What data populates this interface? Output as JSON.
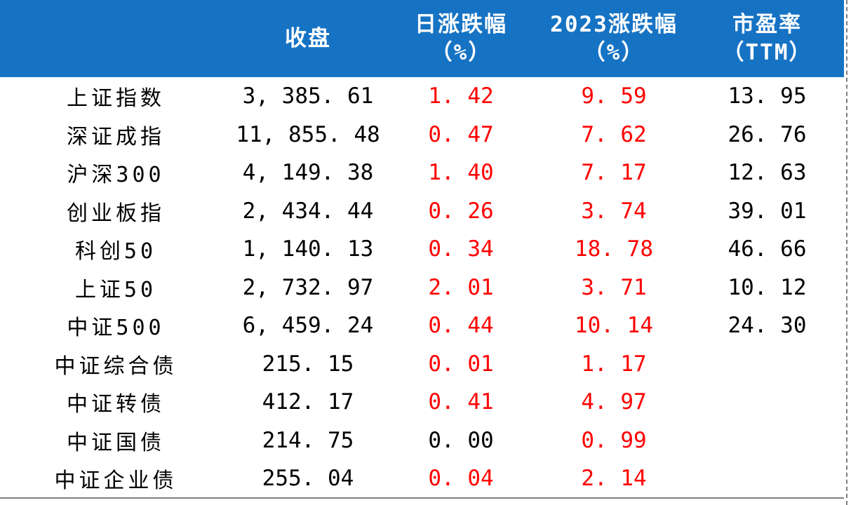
{
  "header": {
    "col0": "",
    "col1": "收盘",
    "col2_line1": "日涨跌幅",
    "col2_line2": "（%）",
    "col3_line1": "2023涨跌幅",
    "col3_line2": "（%）",
    "col4_line1": "市盈率",
    "col4_line2": "（TTM）"
  },
  "colors": {
    "header_bg": "#1673c4",
    "up": "#ff0000",
    "flat": "#000000"
  },
  "rows": [
    {
      "name": "上证指数",
      "close": "3, 385. 61",
      "day": "1. 42",
      "ytd": "9. 59",
      "pe": "13. 95"
    },
    {
      "name": "深证成指",
      "close": "11, 855. 48",
      "day": "0. 47",
      "ytd": "7. 62",
      "pe": "26. 76"
    },
    {
      "name": "沪深300",
      "close": "4, 149. 38",
      "day": "1. 40",
      "ytd": "7. 17",
      "pe": "12. 63"
    },
    {
      "name": "创业板指",
      "close": "2, 434. 44",
      "day": "0. 26",
      "ytd": "3. 74",
      "pe": "39. 01"
    },
    {
      "name": "科创50",
      "close": "1, 140. 13",
      "day": "0. 34",
      "ytd": "18. 78",
      "pe": "46. 66"
    },
    {
      "name": "上证50",
      "close": "2, 732. 97",
      "day": "2. 01",
      "ytd": "3. 71",
      "pe": "10. 12"
    },
    {
      "name": "中证500",
      "close": "6, 459. 24",
      "day": "0. 44",
      "ytd": "10. 14",
      "pe": "24. 30"
    },
    {
      "name": "中证综合债",
      "close": "215. 15",
      "day": "0. 01",
      "ytd": "1. 17",
      "pe": ""
    },
    {
      "name": "中证转债",
      "close": "412. 17",
      "day": "0. 41",
      "ytd": "4. 97",
      "pe": ""
    },
    {
      "name": "中证国债",
      "close": "214. 75",
      "day": "0. 00",
      "ytd": "0. 99",
      "pe": ""
    },
    {
      "name": "中证企业债",
      "close": "255. 04",
      "day": "0. 04",
      "ytd": "2. 14",
      "pe": ""
    }
  ]
}
